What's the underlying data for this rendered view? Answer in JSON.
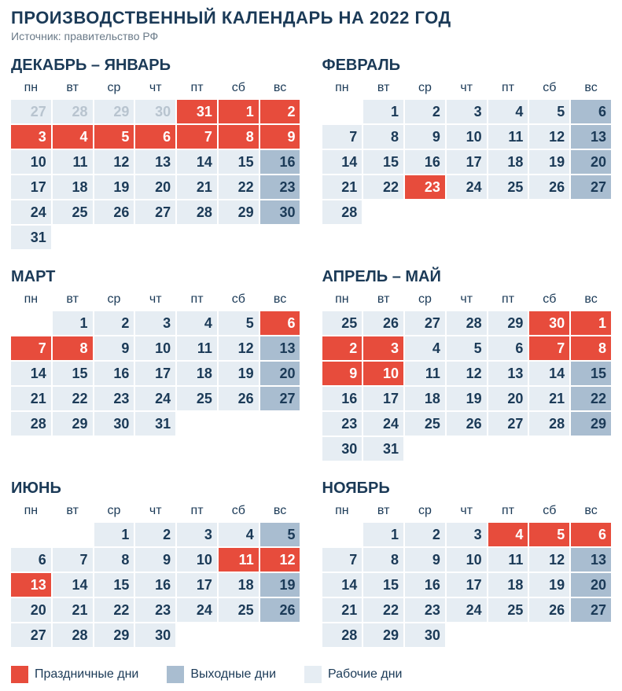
{
  "title": "ПРОИЗВОДСТВЕННЫЙ КАЛЕНДАРЬ НА 2022 ГОД",
  "subtitle": "Источник: правительство РФ",
  "dow": [
    "пн",
    "вт",
    "ср",
    "чт",
    "пт",
    "сб",
    "вс"
  ],
  "colors": {
    "holiday": "#e74c3c",
    "weekend": "#a9bdd0",
    "work": "#e6edf3",
    "prev_text": "#b8c4cf",
    "text": "#1b3a57",
    "bg": "#ffffff"
  },
  "legend": [
    {
      "label": "Праздничные дни",
      "color": "#e74c3c"
    },
    {
      "label": "Выходные дни",
      "color": "#a9bdd0"
    },
    {
      "label": "Рабочие дни",
      "color": "#e6edf3"
    }
  ],
  "months": [
    {
      "title": "ДЕКАБРЬ – ЯНВАРЬ",
      "weeks": [
        [
          {
            "n": "27",
            "t": "prev"
          },
          {
            "n": "28",
            "t": "prev"
          },
          {
            "n": "29",
            "t": "prev"
          },
          {
            "n": "30",
            "t": "prev"
          },
          {
            "n": "31",
            "t": "hol"
          },
          {
            "n": "1",
            "t": "hol"
          },
          {
            "n": "2",
            "t": "hol"
          }
        ],
        [
          {
            "n": "3",
            "t": "hol"
          },
          {
            "n": "4",
            "t": "hol"
          },
          {
            "n": "5",
            "t": "hol"
          },
          {
            "n": "6",
            "t": "hol"
          },
          {
            "n": "7",
            "t": "hol"
          },
          {
            "n": "8",
            "t": "hol"
          },
          {
            "n": "9",
            "t": "hol"
          }
        ],
        [
          {
            "n": "10",
            "t": "work"
          },
          {
            "n": "11",
            "t": "work"
          },
          {
            "n": "12",
            "t": "work"
          },
          {
            "n": "13",
            "t": "work"
          },
          {
            "n": "14",
            "t": "work"
          },
          {
            "n": "15",
            "t": "work"
          },
          {
            "n": "16",
            "t": "wknd"
          }
        ],
        [
          {
            "n": "17",
            "t": "work"
          },
          {
            "n": "18",
            "t": "work"
          },
          {
            "n": "19",
            "t": "work"
          },
          {
            "n": "20",
            "t": "work"
          },
          {
            "n": "21",
            "t": "work"
          },
          {
            "n": "22",
            "t": "work"
          },
          {
            "n": "23",
            "t": "wknd"
          }
        ],
        [
          {
            "n": "24",
            "t": "work"
          },
          {
            "n": "25",
            "t": "work"
          },
          {
            "n": "26",
            "t": "work"
          },
          {
            "n": "27",
            "t": "work"
          },
          {
            "n": "28",
            "t": "work"
          },
          {
            "n": "29",
            "t": "work"
          },
          {
            "n": "30",
            "t": "wknd"
          }
        ],
        [
          {
            "n": "31",
            "t": "work"
          },
          {
            "n": "",
            "t": "empty"
          },
          {
            "n": "",
            "t": "empty"
          },
          {
            "n": "",
            "t": "empty"
          },
          {
            "n": "",
            "t": "empty"
          },
          {
            "n": "",
            "t": "empty"
          },
          {
            "n": "",
            "t": "empty"
          }
        ]
      ]
    },
    {
      "title": "ФЕВРАЛЬ",
      "weeks": [
        [
          {
            "n": "",
            "t": "empty"
          },
          {
            "n": "1",
            "t": "work"
          },
          {
            "n": "2",
            "t": "work"
          },
          {
            "n": "3",
            "t": "work"
          },
          {
            "n": "4",
            "t": "work"
          },
          {
            "n": "5",
            "t": "work"
          },
          {
            "n": "6",
            "t": "wknd"
          }
        ],
        [
          {
            "n": "7",
            "t": "work"
          },
          {
            "n": "8",
            "t": "work"
          },
          {
            "n": "9",
            "t": "work"
          },
          {
            "n": "10",
            "t": "work"
          },
          {
            "n": "11",
            "t": "work"
          },
          {
            "n": "12",
            "t": "work"
          },
          {
            "n": "13",
            "t": "wknd"
          }
        ],
        [
          {
            "n": "14",
            "t": "work"
          },
          {
            "n": "15",
            "t": "work"
          },
          {
            "n": "16",
            "t": "work"
          },
          {
            "n": "17",
            "t": "work"
          },
          {
            "n": "18",
            "t": "work"
          },
          {
            "n": "19",
            "t": "work"
          },
          {
            "n": "20",
            "t": "wknd"
          }
        ],
        [
          {
            "n": "21",
            "t": "work"
          },
          {
            "n": "22",
            "t": "work"
          },
          {
            "n": "23",
            "t": "hol"
          },
          {
            "n": "24",
            "t": "work"
          },
          {
            "n": "25",
            "t": "work"
          },
          {
            "n": "26",
            "t": "work"
          },
          {
            "n": "27",
            "t": "wknd"
          }
        ],
        [
          {
            "n": "28",
            "t": "work"
          },
          {
            "n": "",
            "t": "empty"
          },
          {
            "n": "",
            "t": "empty"
          },
          {
            "n": "",
            "t": "empty"
          },
          {
            "n": "",
            "t": "empty"
          },
          {
            "n": "",
            "t": "empty"
          },
          {
            "n": "",
            "t": "empty"
          }
        ]
      ]
    },
    {
      "title": "МАРТ",
      "weeks": [
        [
          {
            "n": "",
            "t": "empty"
          },
          {
            "n": "1",
            "t": "work"
          },
          {
            "n": "2",
            "t": "work"
          },
          {
            "n": "3",
            "t": "work"
          },
          {
            "n": "4",
            "t": "work"
          },
          {
            "n": "5",
            "t": "work"
          },
          {
            "n": "6",
            "t": "hol"
          }
        ],
        [
          {
            "n": "7",
            "t": "hol"
          },
          {
            "n": "8",
            "t": "hol"
          },
          {
            "n": "9",
            "t": "work"
          },
          {
            "n": "10",
            "t": "work"
          },
          {
            "n": "11",
            "t": "work"
          },
          {
            "n": "12",
            "t": "work"
          },
          {
            "n": "13",
            "t": "wknd"
          }
        ],
        [
          {
            "n": "14",
            "t": "work"
          },
          {
            "n": "15",
            "t": "work"
          },
          {
            "n": "16",
            "t": "work"
          },
          {
            "n": "17",
            "t": "work"
          },
          {
            "n": "18",
            "t": "work"
          },
          {
            "n": "19",
            "t": "work"
          },
          {
            "n": "20",
            "t": "wknd"
          }
        ],
        [
          {
            "n": "21",
            "t": "work"
          },
          {
            "n": "22",
            "t": "work"
          },
          {
            "n": "23",
            "t": "work"
          },
          {
            "n": "24",
            "t": "work"
          },
          {
            "n": "25",
            "t": "work"
          },
          {
            "n": "26",
            "t": "work"
          },
          {
            "n": "27",
            "t": "wknd"
          }
        ],
        [
          {
            "n": "28",
            "t": "work"
          },
          {
            "n": "29",
            "t": "work"
          },
          {
            "n": "30",
            "t": "work"
          },
          {
            "n": "31",
            "t": "work"
          },
          {
            "n": "",
            "t": "empty"
          },
          {
            "n": "",
            "t": "empty"
          },
          {
            "n": "",
            "t": "empty"
          }
        ]
      ]
    },
    {
      "title": "АПРЕЛЬ – МАЙ",
      "weeks": [
        [
          {
            "n": "25",
            "t": "work"
          },
          {
            "n": "26",
            "t": "work"
          },
          {
            "n": "27",
            "t": "work"
          },
          {
            "n": "28",
            "t": "work"
          },
          {
            "n": "29",
            "t": "work"
          },
          {
            "n": "30",
            "t": "hol"
          },
          {
            "n": "1",
            "t": "hol"
          }
        ],
        [
          {
            "n": "2",
            "t": "hol"
          },
          {
            "n": "3",
            "t": "hol"
          },
          {
            "n": "4",
            "t": "work"
          },
          {
            "n": "5",
            "t": "work"
          },
          {
            "n": "6",
            "t": "work"
          },
          {
            "n": "7",
            "t": "hol"
          },
          {
            "n": "8",
            "t": "hol"
          }
        ],
        [
          {
            "n": "9",
            "t": "hol"
          },
          {
            "n": "10",
            "t": "hol"
          },
          {
            "n": "11",
            "t": "work"
          },
          {
            "n": "12",
            "t": "work"
          },
          {
            "n": "13",
            "t": "work"
          },
          {
            "n": "14",
            "t": "work"
          },
          {
            "n": "15",
            "t": "wknd"
          }
        ],
        [
          {
            "n": "16",
            "t": "work"
          },
          {
            "n": "17",
            "t": "work"
          },
          {
            "n": "18",
            "t": "work"
          },
          {
            "n": "19",
            "t": "work"
          },
          {
            "n": "20",
            "t": "work"
          },
          {
            "n": "21",
            "t": "work"
          },
          {
            "n": "22",
            "t": "wknd"
          }
        ],
        [
          {
            "n": "23",
            "t": "work"
          },
          {
            "n": "24",
            "t": "work"
          },
          {
            "n": "25",
            "t": "work"
          },
          {
            "n": "26",
            "t": "work"
          },
          {
            "n": "27",
            "t": "work"
          },
          {
            "n": "28",
            "t": "work"
          },
          {
            "n": "29",
            "t": "wknd"
          }
        ],
        [
          {
            "n": "30",
            "t": "work"
          },
          {
            "n": "31",
            "t": "work"
          },
          {
            "n": "",
            "t": "empty"
          },
          {
            "n": "",
            "t": "empty"
          },
          {
            "n": "",
            "t": "empty"
          },
          {
            "n": "",
            "t": "empty"
          },
          {
            "n": "",
            "t": "empty"
          }
        ]
      ]
    },
    {
      "title": "ИЮНЬ",
      "weeks": [
        [
          {
            "n": "",
            "t": "empty"
          },
          {
            "n": "",
            "t": "empty"
          },
          {
            "n": "1",
            "t": "work"
          },
          {
            "n": "2",
            "t": "work"
          },
          {
            "n": "3",
            "t": "work"
          },
          {
            "n": "4",
            "t": "work"
          },
          {
            "n": "5",
            "t": "wknd"
          }
        ],
        [
          {
            "n": "6",
            "t": "work"
          },
          {
            "n": "7",
            "t": "work"
          },
          {
            "n": "8",
            "t": "work"
          },
          {
            "n": "9",
            "t": "work"
          },
          {
            "n": "10",
            "t": "work"
          },
          {
            "n": "11",
            "t": "hol"
          },
          {
            "n": "12",
            "t": "hol"
          }
        ],
        [
          {
            "n": "13",
            "t": "hol"
          },
          {
            "n": "14",
            "t": "work"
          },
          {
            "n": "15",
            "t": "work"
          },
          {
            "n": "16",
            "t": "work"
          },
          {
            "n": "17",
            "t": "work"
          },
          {
            "n": "18",
            "t": "work"
          },
          {
            "n": "19",
            "t": "wknd"
          }
        ],
        [
          {
            "n": "20",
            "t": "work"
          },
          {
            "n": "21",
            "t": "work"
          },
          {
            "n": "22",
            "t": "work"
          },
          {
            "n": "23",
            "t": "work"
          },
          {
            "n": "24",
            "t": "work"
          },
          {
            "n": "25",
            "t": "work"
          },
          {
            "n": "26",
            "t": "wknd"
          }
        ],
        [
          {
            "n": "27",
            "t": "work"
          },
          {
            "n": "28",
            "t": "work"
          },
          {
            "n": "29",
            "t": "work"
          },
          {
            "n": "30",
            "t": "work"
          },
          {
            "n": "",
            "t": "empty"
          },
          {
            "n": "",
            "t": "empty"
          },
          {
            "n": "",
            "t": "empty"
          }
        ]
      ]
    },
    {
      "title": "НОЯБРЬ",
      "weeks": [
        [
          {
            "n": "",
            "t": "empty"
          },
          {
            "n": "1",
            "t": "work"
          },
          {
            "n": "2",
            "t": "work"
          },
          {
            "n": "3",
            "t": "work"
          },
          {
            "n": "4",
            "t": "hol"
          },
          {
            "n": "5",
            "t": "hol"
          },
          {
            "n": "6",
            "t": "hol"
          }
        ],
        [
          {
            "n": "7",
            "t": "work"
          },
          {
            "n": "8",
            "t": "work"
          },
          {
            "n": "9",
            "t": "work"
          },
          {
            "n": "10",
            "t": "work"
          },
          {
            "n": "11",
            "t": "work"
          },
          {
            "n": "12",
            "t": "work"
          },
          {
            "n": "13",
            "t": "wknd"
          }
        ],
        [
          {
            "n": "14",
            "t": "work"
          },
          {
            "n": "15",
            "t": "work"
          },
          {
            "n": "16",
            "t": "work"
          },
          {
            "n": "17",
            "t": "work"
          },
          {
            "n": "18",
            "t": "work"
          },
          {
            "n": "19",
            "t": "work"
          },
          {
            "n": "20",
            "t": "wknd"
          }
        ],
        [
          {
            "n": "21",
            "t": "work"
          },
          {
            "n": "22",
            "t": "work"
          },
          {
            "n": "23",
            "t": "work"
          },
          {
            "n": "24",
            "t": "work"
          },
          {
            "n": "25",
            "t": "work"
          },
          {
            "n": "26",
            "t": "work"
          },
          {
            "n": "27",
            "t": "wknd"
          }
        ],
        [
          {
            "n": "28",
            "t": "work"
          },
          {
            "n": "29",
            "t": "work"
          },
          {
            "n": "30",
            "t": "work"
          },
          {
            "n": "",
            "t": "empty"
          },
          {
            "n": "",
            "t": "empty"
          },
          {
            "n": "",
            "t": "empty"
          },
          {
            "n": "",
            "t": "empty"
          }
        ]
      ]
    }
  ]
}
